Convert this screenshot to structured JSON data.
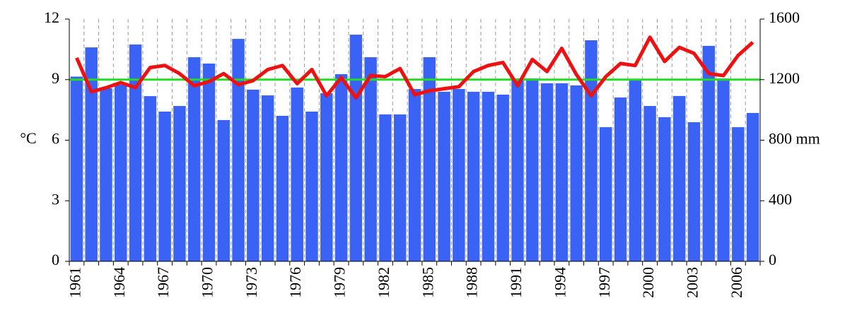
{
  "chart_data": {
    "type": "bar_line",
    "ylabel": "°C",
    "categories": [
      "1961",
      null,
      null,
      "1964",
      null,
      null,
      "1967",
      null,
      null,
      "1970",
      null,
      null,
      "1973",
      null,
      null,
      "1976",
      null,
      null,
      "1979",
      null,
      null,
      "1982",
      null,
      null,
      "1985",
      null,
      null,
      "1988",
      null,
      null,
      "1991",
      null,
      null,
      "1994",
      null,
      null,
      "1997",
      null,
      null,
      "2000",
      null,
      null,
      "2003",
      null,
      null,
      "2006",
      null
    ],
    "series": [
      {
        "type": "bar",
        "axis": "y2",
        "color": "#3a62f5",
        "values": [
          1220,
          1413,
          1143,
          1166,
          1432,
          1091,
          989,
          1026,
          1348,
          1306,
          933,
          1469,
          1134,
          1096,
          961,
          1148,
          989,
          1110,
          1236,
          1497,
          1348,
          970,
          970,
          1138,
          1348,
          1120,
          1138,
          1120,
          1120,
          1101,
          1208,
          1208,
          1176,
          1176,
          1162,
          1460,
          886,
          1082,
          1204,
          1026,
          952,
          1092,
          919,
          1423,
          1208,
          886,
          980
        ]
      },
      {
        "type": "line",
        "axis": "y",
        "color": "#ee1111",
        "values": [
          10.08,
          8.4,
          8.6,
          8.85,
          8.6,
          9.6,
          9.7,
          9.3,
          8.7,
          8.9,
          9.3,
          8.75,
          8.95,
          9.5,
          9.7,
          8.8,
          9.5,
          8.2,
          9.1,
          8.1,
          9.2,
          9.15,
          9.55,
          8.25,
          8.45,
          8.55,
          8.65,
          9.4,
          9.7,
          9.85,
          8.7,
          10.0,
          9.4,
          10.55,
          9.25,
          8.2,
          9.15,
          9.8,
          9.7,
          11.1,
          9.9,
          10.6,
          10.3,
          9.3,
          9.2,
          10.2,
          10.85
        ]
      }
    ],
    "reference_line": {
      "value": 9,
      "color": "#22dd22"
    },
    "ylim": [
      0,
      12
    ],
    "yticks": [
      0,
      3,
      6,
      9,
      12
    ],
    "y2lim": [
      0,
      1600
    ],
    "y2ticks": [
      0,
      400,
      {
        "value": 800,
        "label": "800 mm"
      },
      1200,
      1600
    ],
    "grid": "x"
  }
}
